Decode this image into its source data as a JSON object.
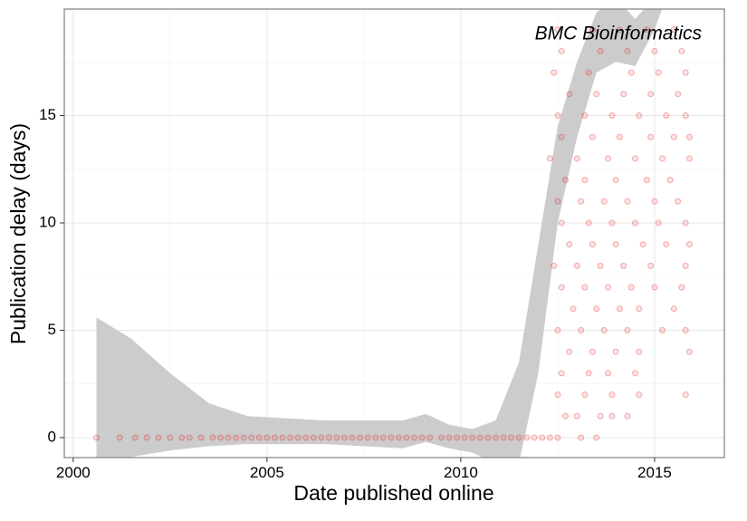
{
  "chart_data": {
    "type": "scatter",
    "annotation": "BMC Bioinformatics",
    "x_label": "Date published online",
    "y_label": "Publication delay (days)",
    "xlim": [
      1999.77,
      2016.8
    ],
    "xticks": [
      2000,
      2005,
      2010,
      2015
    ],
    "xminor": [
      2002.5,
      2007.5,
      2012.5
    ],
    "ylim": [
      -0.93,
      19.96
    ],
    "yticks": [
      0,
      5,
      10,
      15
    ],
    "yminor": [
      2.5,
      7.5,
      12.5,
      17.5
    ],
    "grid": true,
    "color": "#e41a1c",
    "band_color": "#cccccc",
    "x": [
      2000.6,
      2001.2,
      2001.6,
      2001.9,
      2002.2,
      2002.5,
      2002.8,
      2003.0,
      2003.3,
      2003.6,
      2003.8,
      2004.0,
      2004.2,
      2004.4,
      2004.6,
      2004.8,
      2005.0,
      2005.2,
      2005.4,
      2005.6,
      2005.8,
      2006.0,
      2006.2,
      2006.4,
      2006.6,
      2006.8,
      2007.0,
      2007.2,
      2007.4,
      2007.6,
      2007.8,
      2008.0,
      2008.2,
      2008.4,
      2008.6,
      2008.8,
      2009.0,
      2009.2,
      2009.5,
      2009.7,
      2009.9,
      2010.1,
      2010.3,
      2010.5,
      2010.7,
      2010.9,
      2011.1,
      2011.3,
      2011.5,
      2011.7,
      2011.9,
      2012.1,
      2012.3,
      2012.5,
      2013.1,
      2013.5,
      2012.7,
      2013.0,
      2013.6,
      2013.9,
      2014.3,
      2012.5,
      2013.2,
      2013.9,
      2014.6,
      2015.8,
      2012.6,
      2013.3,
      2013.8,
      2014.5,
      2012.8,
      2013.4,
      2014.0,
      2014.6,
      2015.9,
      2012.5,
      2013.1,
      2013.7,
      2014.3,
      2015.2,
      2015.8,
      2012.9,
      2013.5,
      2014.1,
      2014.6,
      2015.5,
      2012.6,
      2013.2,
      2013.8,
      2014.4,
      2015.0,
      2015.7,
      2012.4,
      2013.0,
      2013.6,
      2014.2,
      2014.9,
      2015.8,
      2012.8,
      2013.4,
      2014.0,
      2014.7,
      2015.3,
      2015.9,
      2012.6,
      2013.3,
      2013.9,
      2014.5,
      2015.1,
      2015.8,
      2012.5,
      2013.1,
      2013.7,
      2014.3,
      2015.0,
      2015.6,
      2012.7,
      2013.2,
      2014.0,
      2014.8,
      2015.4,
      2012.3,
      2013.0,
      2013.8,
      2014.5,
      2015.2,
      2015.9,
      2012.6,
      2013.4,
      2014.1,
      2014.9,
      2015.5,
      2015.9,
      2012.5,
      2013.2,
      2013.9,
      2014.6,
      2015.3,
      2015.8,
      2012.8,
      2013.5,
      2014.2,
      2014.9,
      2015.6,
      2012.4,
      2013.3,
      2014.4,
      2015.1,
      2015.8,
      2012.6,
      2013.6,
      2014.3,
      2015.0,
      2015.7,
      2012.5,
      2013.4,
      2014.1,
      2014.8,
      2015.5
    ],
    "values": [
      0,
      0,
      0,
      0,
      0,
      0,
      0,
      0,
      0,
      0,
      0,
      0,
      0,
      0,
      0,
      0,
      0,
      0,
      0,
      0,
      0,
      0,
      0,
      0,
      0,
      0,
      0,
      0,
      0,
      0,
      0,
      0,
      0,
      0,
      0,
      0,
      0,
      0,
      0,
      0,
      0,
      0,
      0,
      0,
      0,
      0,
      0,
      0,
      0,
      0,
      0,
      0,
      0,
      0,
      0,
      0,
      1,
      1,
      1,
      1,
      1,
      2,
      2,
      2,
      2,
      2,
      3,
      3,
      3,
      3,
      4,
      4,
      4,
      4,
      4,
      5,
      5,
      5,
      5,
      5,
      5,
      6,
      6,
      6,
      6,
      6,
      7,
      7,
      7,
      7,
      7,
      7,
      8,
      8,
      8,
      8,
      8,
      8,
      9,
      9,
      9,
      9,
      9,
      9,
      10,
      10,
      10,
      10,
      10,
      10,
      11,
      11,
      11,
      11,
      11,
      11,
      12,
      12,
      12,
      12,
      12,
      13,
      13,
      13,
      13,
      13,
      13,
      14,
      14,
      14,
      14,
      14,
      14,
      15,
      15,
      15,
      15,
      15,
      15,
      16,
      16,
      16,
      16,
      16,
      17,
      17,
      17,
      17,
      17,
      18,
      18,
      18,
      18,
      18,
      19,
      19,
      19,
      19,
      19
    ],
    "band": {
      "x": [
        2000.6,
        2001.5,
        2002.5,
        2003.5,
        2004.5,
        2005.5,
        2006.5,
        2007.5,
        2008.5,
        2009.1,
        2009.7,
        2010.3,
        2010.9,
        2011.5,
        2012.0,
        2012.5,
        2013.0,
        2013.5,
        2014.0,
        2014.5,
        2015.0,
        2015.4
      ],
      "upper": [
        5.6,
        4.6,
        3.0,
        1.6,
        1.0,
        0.9,
        0.8,
        0.8,
        0.8,
        1.1,
        0.6,
        0.4,
        0.8,
        3.5,
        9,
        14.5,
        17.5,
        19.8,
        20.5,
        19.5,
        20.5,
        22
      ],
      "lower": [
        -1.5,
        -0.9,
        -0.6,
        -0.4,
        -0.3,
        -0.3,
        -0.3,
        -0.4,
        -0.5,
        -0.2,
        -0.5,
        -0.7,
        -1.2,
        -1.2,
        3,
        10,
        14,
        17,
        17.5,
        17.3,
        19,
        21
      ]
    }
  }
}
